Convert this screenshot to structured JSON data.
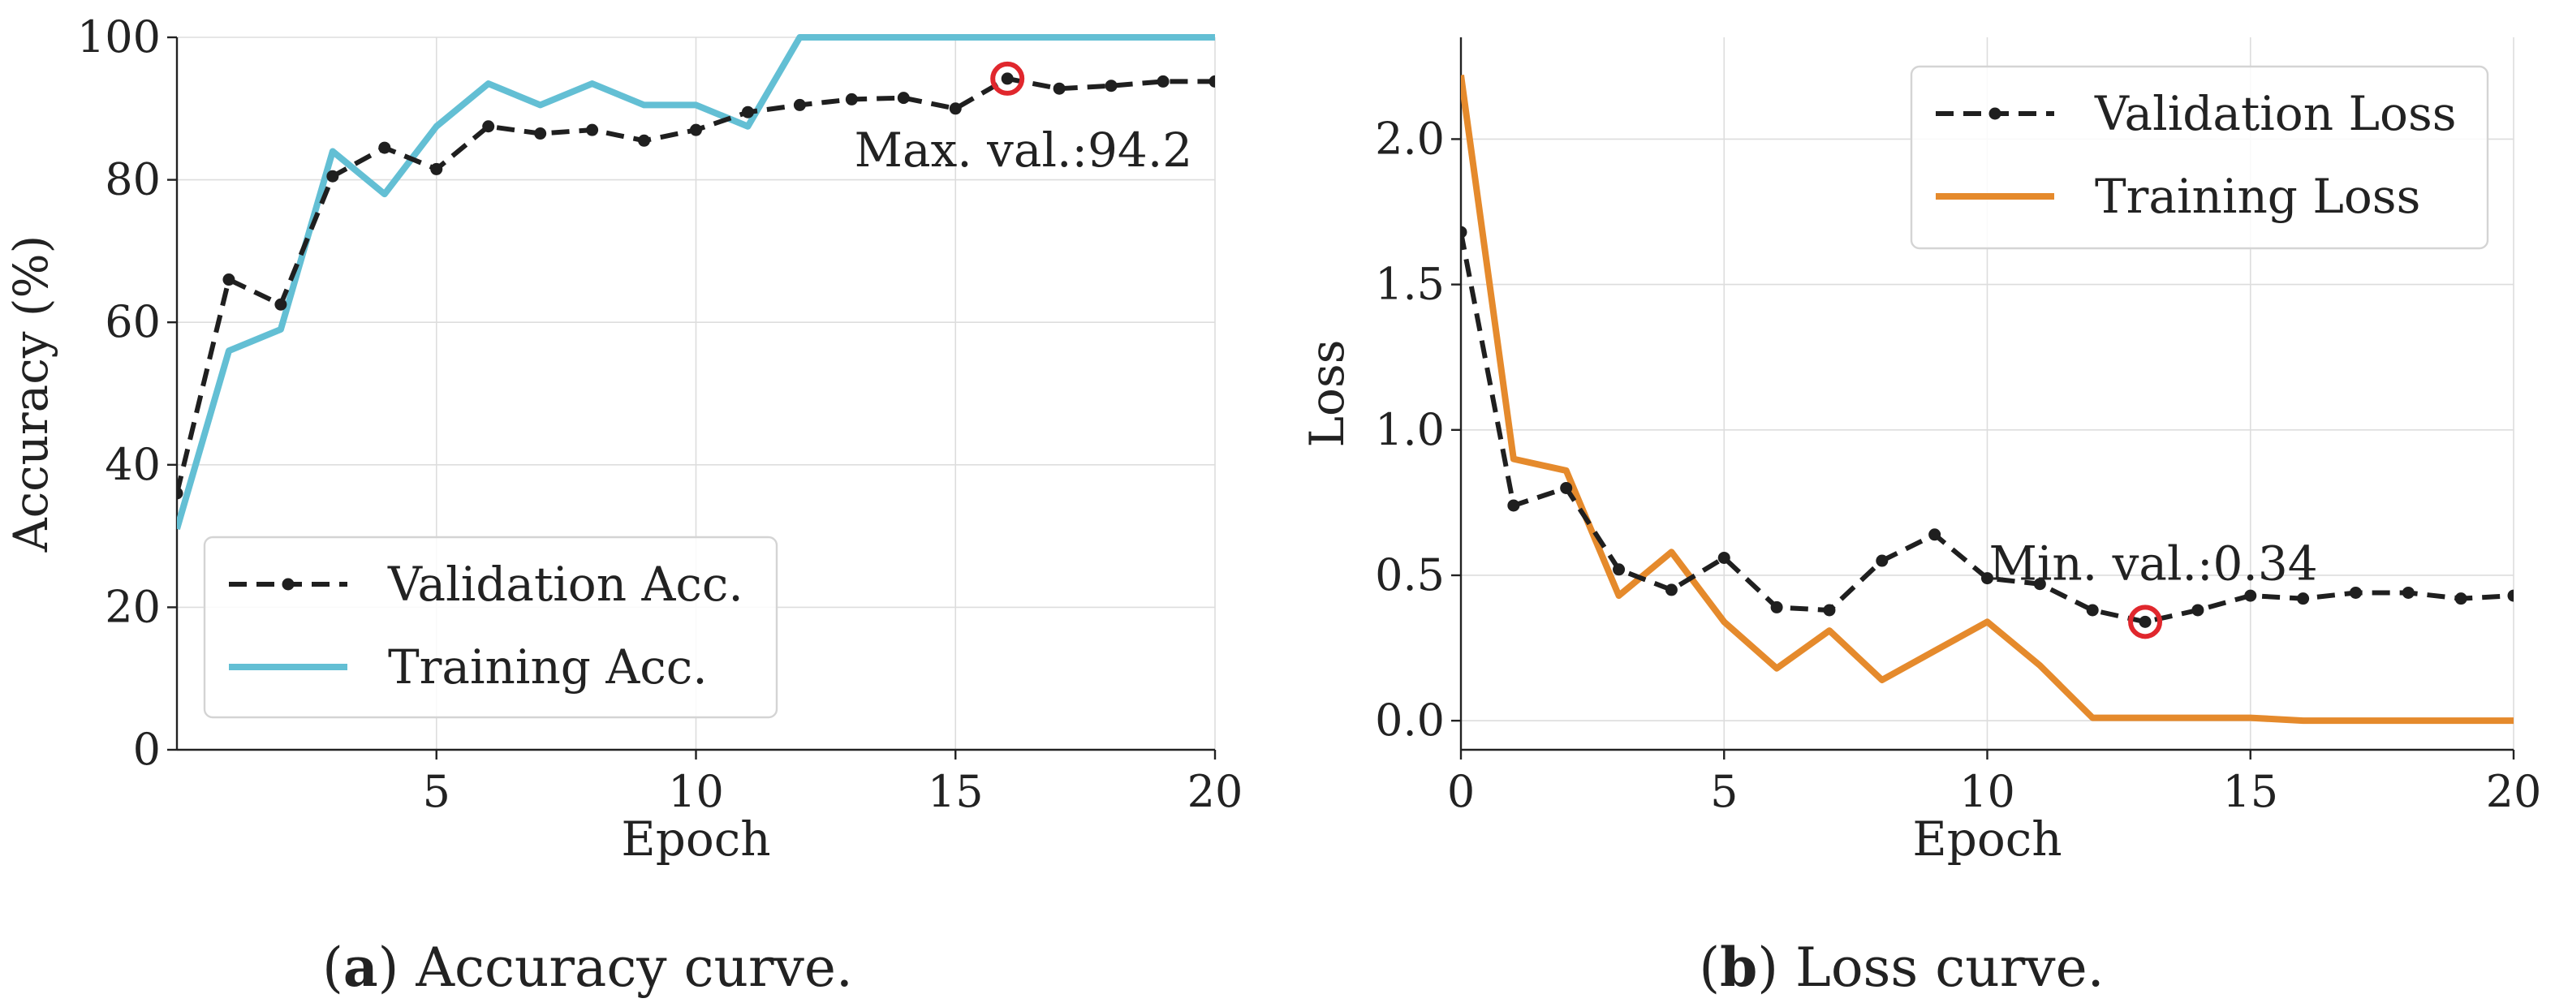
{
  "chart_data": [
    {
      "type": "line",
      "xlabel": "Epoch",
      "ylabel": "Accuracy (%)",
      "xlim": [
        0,
        20
      ],
      "ylim": [
        0,
        100
      ],
      "xticks": [
        "5",
        "10",
        "15",
        "20"
      ],
      "yticks": [
        "0",
        "20",
        "40",
        "60",
        "80",
        "100"
      ],
      "grid": true,
      "legend_position": "bottom-left",
      "caption_letter": "a",
      "caption_text": " Accuracy curve.",
      "series": [
        {
          "name": "Validation Acc.",
          "style": "dashed-dots",
          "color": "#1f1f1f",
          "x": [
            0,
            1,
            2,
            3,
            4,
            5,
            6,
            7,
            8,
            9,
            10,
            11,
            12,
            13,
            14,
            15,
            16,
            17,
            18,
            19,
            20
          ],
          "values": [
            36,
            66,
            62.5,
            80.5,
            84.5,
            81.5,
            87.5,
            86.5,
            87,
            85.5,
            87,
            89.5,
            90.5,
            91.3,
            91.5,
            90,
            94.2,
            92.8,
            93.2,
            93.8,
            93.8
          ]
        },
        {
          "name": "Training Acc.",
          "style": "solid",
          "color": "#63bfd4",
          "x": [
            0,
            1,
            2,
            3,
            4,
            5,
            6,
            7,
            8,
            9,
            10,
            11,
            12,
            13,
            14,
            15,
            16,
            17,
            18,
            19,
            20
          ],
          "values": [
            31,
            56,
            59,
            84,
            78,
            87.5,
            93.5,
            90.5,
            93.5,
            90.5,
            90.5,
            87.5,
            100,
            100,
            100,
            100,
            100,
            100,
            100,
            100,
            100
          ]
        }
      ],
      "annotation": {
        "text": "Max. val.:94.2",
        "x": 16,
        "y": 94.2,
        "marker_color": "#e0272d"
      }
    },
    {
      "type": "line",
      "xlabel": "Epoch",
      "ylabel": "Loss",
      "xlim": [
        0,
        20
      ],
      "ylim": [
        -0.1,
        2.35
      ],
      "xticks": [
        "0",
        "5",
        "10",
        "15",
        "20"
      ],
      "yticks": [
        "0.0",
        "0.5",
        "1.0",
        "1.5",
        "2.0"
      ],
      "grid": true,
      "legend_position": "top-right",
      "caption_letter": "b",
      "caption_text": " Loss curve.",
      "series": [
        {
          "name": "Validation Loss",
          "style": "dashed-dots",
          "color": "#1f1f1f",
          "x": [
            0,
            1,
            2,
            3,
            4,
            5,
            6,
            7,
            8,
            9,
            10,
            11,
            12,
            13,
            14,
            15,
            16,
            17,
            18,
            19,
            20
          ],
          "values": [
            1.68,
            0.74,
            0.8,
            0.52,
            0.45,
            0.56,
            0.39,
            0.38,
            0.55,
            0.64,
            0.49,
            0.47,
            0.38,
            0.34,
            0.38,
            0.43,
            0.42,
            0.44,
            0.44,
            0.42,
            0.43
          ]
        },
        {
          "name": "Training Loss",
          "style": "solid",
          "color": "#e58a2c",
          "x": [
            0,
            1,
            2,
            3,
            4,
            5,
            6,
            7,
            8,
            9,
            10,
            11,
            12,
            13,
            14,
            15,
            16,
            17,
            18,
            19,
            20
          ],
          "values": [
            2.22,
            0.9,
            0.86,
            0.43,
            0.58,
            0.34,
            0.18,
            0.31,
            0.14,
            0.24,
            0.34,
            0.19,
            0.01,
            0.01,
            0.01,
            0.01,
            0.0,
            0.0,
            0.0,
            0.0,
            0.0
          ]
        }
      ],
      "annotation": {
        "text": "Min. val.:0.34",
        "x": 13,
        "y": 0.34,
        "marker_color": "#e0272d"
      }
    }
  ]
}
